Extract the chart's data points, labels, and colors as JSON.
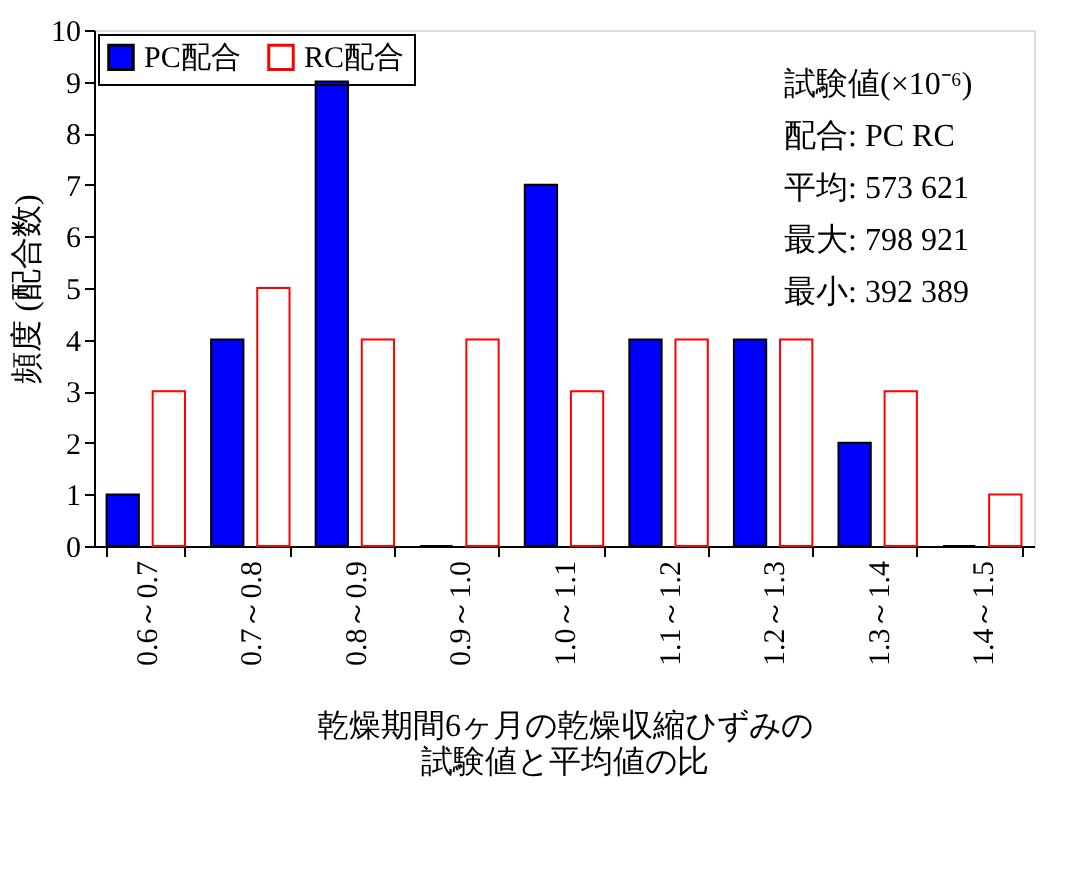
{
  "chart_data": {
    "type": "bar",
    "xlabel": "乾燥期間6ヶ月の乾燥収縮ひずみの試験値と平均値の比",
    "ylabel": "頻度 (配合数)",
    "categories": [
      "0.6～0.7",
      "0.7～0.8",
      "0.8～0.9",
      "0.9～1.0",
      "1.0～1.1",
      "1.1～1.2",
      "1.2～1.3",
      "1.3～1.4",
      "1.4～1.5"
    ],
    "series": [
      {
        "name": "PC配合",
        "color": "#0000ff",
        "values": [
          1,
          4,
          9,
          0,
          7,
          4,
          4,
          2,
          0
        ]
      },
      {
        "name": "RC配合",
        "color": "#ff0000",
        "values": [
          3,
          5,
          4,
          4,
          3,
          4,
          4,
          3,
          1
        ]
      }
    ],
    "ylim": [
      0,
      10
    ],
    "yticks": [
      0,
      1,
      2,
      3,
      4,
      5,
      6,
      7,
      8,
      9,
      10
    ],
    "grid": false,
    "legend": "top left",
    "annotations": [
      "試験値(×10⁻⁶)",
      "配合: PC    RC",
      "平均: 573   621",
      "最大: 798   921",
      "最小: 392   389"
    ]
  }
}
